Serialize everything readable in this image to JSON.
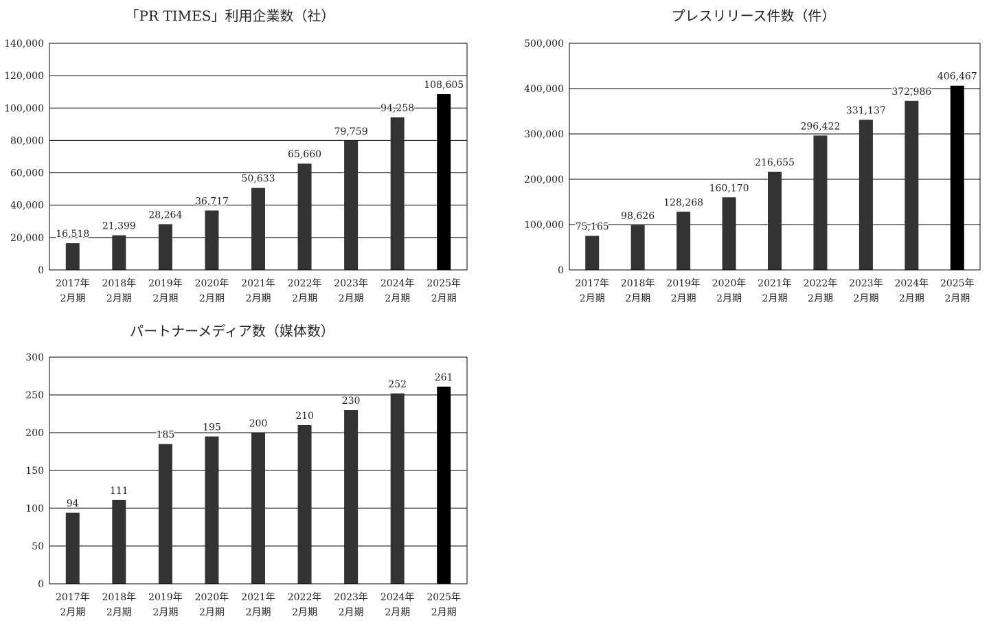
{
  "colors": {
    "bar": "#333333",
    "bar_highlight": "#000000",
    "grid": "#000000",
    "frame": "#000000",
    "background": "#ffffff"
  },
  "chart_data": [
    {
      "type": "bar",
      "title": "「PR TIMES」利用企業数（社）",
      "categories": [
        [
          "2017年",
          "2月期"
        ],
        [
          "2018年",
          "2月期"
        ],
        [
          "2019年",
          "2月期"
        ],
        [
          "2020年",
          "2月期"
        ],
        [
          "2021年",
          "2月期"
        ],
        [
          "2022年",
          "2月期"
        ],
        [
          "2023年",
          "2月期"
        ],
        [
          "2024年",
          "2月期"
        ],
        [
          "2025年",
          "2月期"
        ]
      ],
      "values": [
        16518,
        21399,
        28264,
        36717,
        50633,
        65660,
        79759,
        94258,
        108605
      ],
      "value_labels": [
        "16,518",
        "21,399",
        "28,264",
        "36,717",
        "50,633",
        "65,660",
        "79,759",
        "94,258",
        "108,605"
      ],
      "yticks": [
        0,
        20000,
        40000,
        60000,
        80000,
        100000,
        120000,
        140000
      ],
      "ytick_labels": [
        "0",
        "20,000",
        "40,000",
        "60,000",
        "80,000",
        "100,000",
        "120,000",
        "140,000"
      ],
      "ylim": [
        0,
        140000
      ],
      "grid": true,
      "highlight_last": true
    },
    {
      "type": "bar",
      "title": "プレスリリース件数（件）",
      "categories": [
        [
          "2017年",
          "2月期"
        ],
        [
          "2018年",
          "2月期"
        ],
        [
          "2019年",
          "2月期"
        ],
        [
          "2020年",
          "2月期"
        ],
        [
          "2021年",
          "2月期"
        ],
        [
          "2022年",
          "2月期"
        ],
        [
          "2023年",
          "2月期"
        ],
        [
          "2024年",
          "2月期"
        ],
        [
          "2025年",
          "2月期"
        ]
      ],
      "values": [
        75165,
        98626,
        128268,
        160170,
        216655,
        296422,
        331137,
        372986,
        406467
      ],
      "value_labels": [
        "75,165",
        "98,626",
        "128,268",
        "160,170",
        "216,655",
        "296,422",
        "331,137",
        "372,986",
        "406,467"
      ],
      "yticks": [
        0,
        100000,
        200000,
        300000,
        400000,
        500000
      ],
      "ytick_labels": [
        "0",
        "100,000",
        "200,000",
        "300,000",
        "400,000",
        "500,000"
      ],
      "ylim": [
        0,
        500000
      ],
      "grid": true,
      "highlight_last": true
    },
    {
      "type": "bar",
      "title": "パートナーメディア数（媒体数）",
      "categories": [
        [
          "2017年",
          "2月期"
        ],
        [
          "2018年",
          "2月期"
        ],
        [
          "2019年",
          "2月期"
        ],
        [
          "2020年",
          "2月期"
        ],
        [
          "2021年",
          "2月期"
        ],
        [
          "2022年",
          "2月期"
        ],
        [
          "2023年",
          "2月期"
        ],
        [
          "2024年",
          "2月期"
        ],
        [
          "2025年",
          "2月期"
        ]
      ],
      "values": [
        94,
        111,
        185,
        195,
        200,
        210,
        230,
        252,
        261
      ],
      "value_labels": [
        "94",
        "111",
        "185",
        "195",
        "200",
        "210",
        "230",
        "252",
        "261"
      ],
      "yticks": [
        0,
        50,
        100,
        150,
        200,
        250,
        300
      ],
      "ytick_labels": [
        "0",
        "50",
        "100",
        "150",
        "200",
        "250",
        "300"
      ],
      "ylim": [
        0,
        300
      ],
      "grid": true,
      "highlight_last": true
    }
  ]
}
